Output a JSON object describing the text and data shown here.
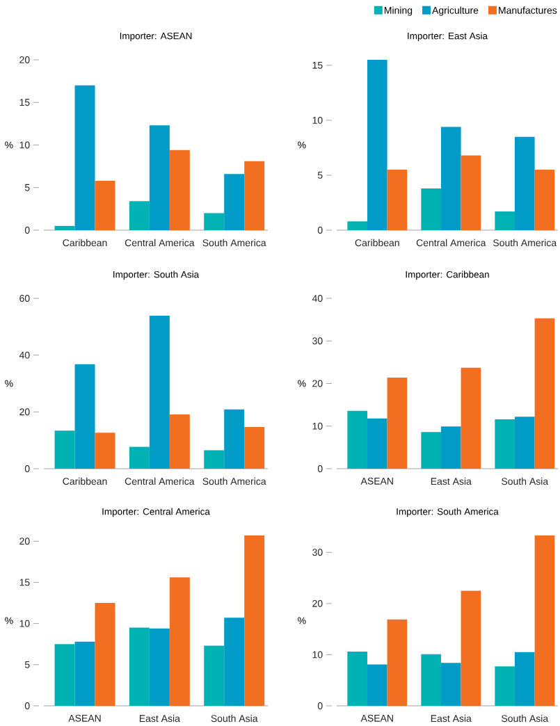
{
  "chart_data": [
    {
      "type": "bar",
      "title": "Importer: ASEAN",
      "ylabel": "%",
      "categories": [
        "Caribbean",
        "Central America",
        "South America"
      ],
      "ylim": [
        0,
        20
      ],
      "yticks": [
        0,
        5,
        10,
        15,
        20
      ],
      "series": [
        {
          "color": "#00b2b4",
          "values": [
            0.5,
            3.4,
            2.0
          ]
        },
        {
          "color": "#009bc6",
          "values": [
            17.0,
            12.3,
            6.6
          ]
        },
        {
          "color": "#f26f21",
          "values": [
            5.8,
            9.4,
            8.1
          ]
        }
      ]
    },
    {
      "type": "bar",
      "title": "Importer: East Asia",
      "ylabel": "%",
      "categories": [
        "Caribbean",
        "Central America",
        "South America"
      ],
      "ylim": [
        0,
        15.5
      ],
      "yticks": [
        0,
        5,
        10,
        15
      ],
      "legend": "top right",
      "series": [
        {
          "name": "Mining",
          "color": "#00b2b4",
          "values": [
            0.8,
            3.8,
            1.7
          ]
        },
        {
          "name": "Agriculture",
          "color": "#009bc6",
          "values": [
            15.5,
            9.4,
            8.5
          ]
        },
        {
          "name": "Manufactures",
          "color": "#f26f21",
          "values": [
            5.5,
            6.8,
            5.5
          ]
        }
      ]
    },
    {
      "type": "bar",
      "title": "Importer: South Asia",
      "ylabel": "%",
      "categories": [
        "Caribbean",
        "Central America",
        "South America"
      ],
      "ylim": [
        0,
        60
      ],
      "yticks": [
        0,
        20,
        40,
        60
      ],
      "series": [
        {
          "color": "#00b2b4",
          "values": [
            13.4,
            7.7,
            6.5
          ]
        },
        {
          "color": "#009bc6",
          "values": [
            36.8,
            53.9,
            20.9
          ]
        },
        {
          "color": "#f26f21",
          "values": [
            12.7,
            19.1,
            14.7
          ]
        }
      ]
    },
    {
      "type": "bar",
      "title": "Importer: Caribbean",
      "ylabel": "%",
      "categories": [
        "ASEAN",
        "East Asia",
        "South Asia"
      ],
      "ylim": [
        0,
        40
      ],
      "yticks": [
        0,
        10,
        20,
        30,
        40
      ],
      "series": [
        {
          "color": "#00b2b4",
          "values": [
            13.6,
            8.6,
            11.6
          ]
        },
        {
          "color": "#009bc6",
          "values": [
            11.8,
            9.9,
            12.2
          ]
        },
        {
          "color": "#f26f21",
          "values": [
            21.4,
            23.7,
            35.3
          ]
        }
      ]
    },
    {
      "type": "bar",
      "title": "Importer: Central America",
      "ylabel": "%",
      "categories": [
        "ASEAN",
        "East Asia",
        "South Asia"
      ],
      "ylim": [
        0,
        20.7
      ],
      "yticks": [
        0,
        5,
        10,
        15,
        20
      ],
      "series": [
        {
          "color": "#00b2b4",
          "values": [
            7.5,
            9.5,
            7.3
          ]
        },
        {
          "color": "#009bc6",
          "values": [
            7.8,
            9.4,
            10.7
          ]
        },
        {
          "color": "#f26f21",
          "values": [
            12.5,
            15.6,
            20.7
          ]
        }
      ]
    },
    {
      "type": "bar",
      "title": "Importer: South America",
      "ylabel": "%",
      "categories": [
        "ASEAN",
        "East Asia",
        "South Asia"
      ],
      "ylim": [
        0,
        33.3
      ],
      "yticks": [
        0,
        10,
        20,
        30
      ],
      "series": [
        {
          "color": "#00b2b4",
          "values": [
            10.6,
            10.1,
            7.7
          ]
        },
        {
          "color": "#009bc6",
          "values": [
            8.1,
            8.4,
            10.5
          ]
        },
        {
          "color": "#f26f21",
          "values": [
            16.9,
            22.5,
            33.3
          ]
        }
      ]
    }
  ]
}
